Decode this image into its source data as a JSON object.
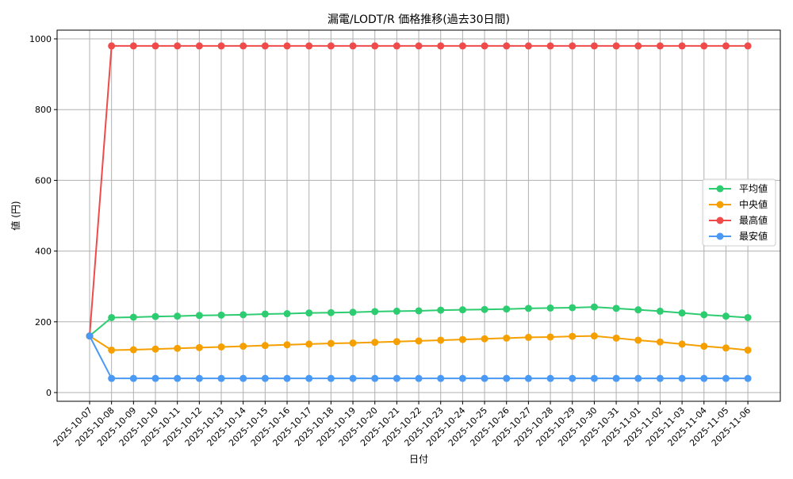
{
  "chart_data": {
    "type": "line",
    "title": "漏電/LODT/R 価格推移(過去30日間)",
    "xlabel": "日付",
    "ylabel": "値 (円)",
    "ylim": [
      0,
      1000
    ],
    "yticks": [
      0,
      200,
      400,
      600,
      800,
      1000
    ],
    "grid": true,
    "legend_position": "center right",
    "x": [
      "2025-10-07",
      "2025-10-08",
      "2025-10-09",
      "2025-10-10",
      "2025-10-11",
      "2025-10-12",
      "2025-10-13",
      "2025-10-14",
      "2025-10-15",
      "2025-10-16",
      "2025-10-17",
      "2025-10-18",
      "2025-10-19",
      "2025-10-20",
      "2025-10-21",
      "2025-10-22",
      "2025-10-23",
      "2025-10-24",
      "2025-10-25",
      "2025-10-26",
      "2025-10-27",
      "2025-10-28",
      "2025-10-29",
      "2025-10-30",
      "2025-10-31",
      "2025-11-01",
      "2025-11-02",
      "2025-11-03",
      "2025-11-04",
      "2025-11-05",
      "2025-11-06"
    ],
    "series": [
      {
        "name": "平均値",
        "color": "#2ecc71",
        "values": [
          160,
          212,
          213,
          215,
          216,
          218,
          219,
          220,
          222,
          223,
          225,
          226,
          227,
          229,
          230,
          231,
          233,
          234,
          235,
          236,
          238,
          239,
          240,
          242,
          238,
          234,
          230,
          225,
          220,
          216,
          212
        ]
      },
      {
        "name": "中央値",
        "color": "#f5a000",
        "values": [
          160,
          120,
          121,
          123,
          125,
          127,
          129,
          131,
          133,
          135,
          137,
          139,
          140,
          142,
          144,
          146,
          148,
          150,
          152,
          154,
          156,
          157,
          159,
          160,
          154,
          148,
          143,
          137,
          131,
          126,
          120
        ]
      },
      {
        "name": "最高値",
        "color": "#ef4b4b",
        "values": [
          160,
          980,
          980,
          980,
          980,
          980,
          980,
          980,
          980,
          980,
          980,
          980,
          980,
          980,
          980,
          980,
          980,
          980,
          980,
          980,
          980,
          980,
          980,
          980,
          980,
          980,
          980,
          980,
          980,
          980,
          980
        ]
      },
      {
        "name": "最安値",
        "color": "#4a9af5",
        "values": [
          160,
          40,
          40,
          40,
          40,
          40,
          40,
          40,
          40,
          40,
          40,
          40,
          40,
          40,
          40,
          40,
          40,
          40,
          40,
          40,
          40,
          40,
          40,
          40,
          40,
          40,
          40,
          40,
          40,
          40,
          40
        ]
      }
    ]
  }
}
